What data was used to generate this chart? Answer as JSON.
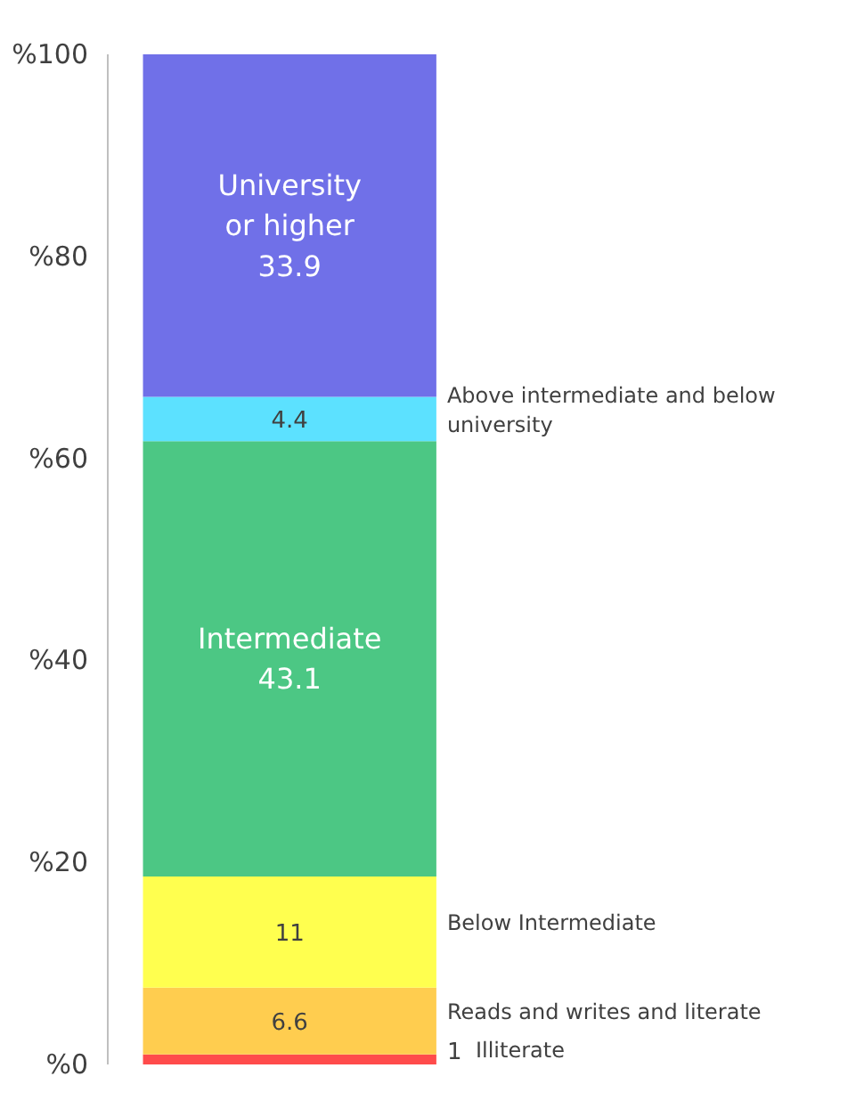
{
  "chart_data": {
    "type": "bar",
    "stacked": true,
    "categories": [
      null
    ],
    "series": [
      {
        "name": "Illiterate",
        "color": "#ff4b4b",
        "values": [
          1
        ]
      },
      {
        "name": "Reads and writes and literate",
        "color": "#ffcd4f",
        "values": [
          6.6
        ]
      },
      {
        "name": "Below Intermediate",
        "color": "#ffff4f",
        "values": [
          11
        ]
      },
      {
        "name": "Intermediate",
        "color": "#4cc784",
        "values": [
          43.1
        ]
      },
      {
        "name": "Above intermediate and below university",
        "color": "#5ce1ff",
        "values": [
          4.4
        ]
      },
      {
        "name": "University or higher",
        "color": "#7070e8",
        "values": [
          33.9
        ]
      }
    ],
    "ylim": [
      0,
      100
    ],
    "yticks": [
      {
        "value": 0,
        "label": "%0"
      },
      {
        "value": 20,
        "label": "%20"
      },
      {
        "value": 40,
        "label": "%40"
      },
      {
        "value": 60,
        "label": "%60"
      },
      {
        "value": 80,
        "label": "%80"
      },
      {
        "value": 100,
        "label": "%100"
      }
    ],
    "data_labels": true,
    "grid": false,
    "legend": false
  }
}
